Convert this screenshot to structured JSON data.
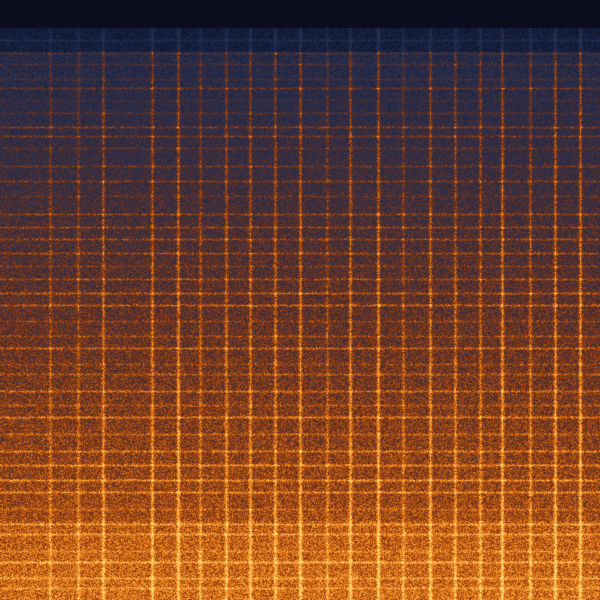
{
  "colors": {
    "top_band": "#050505",
    "low_energy": "#1c2c52",
    "mid_energy": "#8a3a10",
    "high_energy": "#ff9a1e",
    "peak": "#ffd060"
  }
}
